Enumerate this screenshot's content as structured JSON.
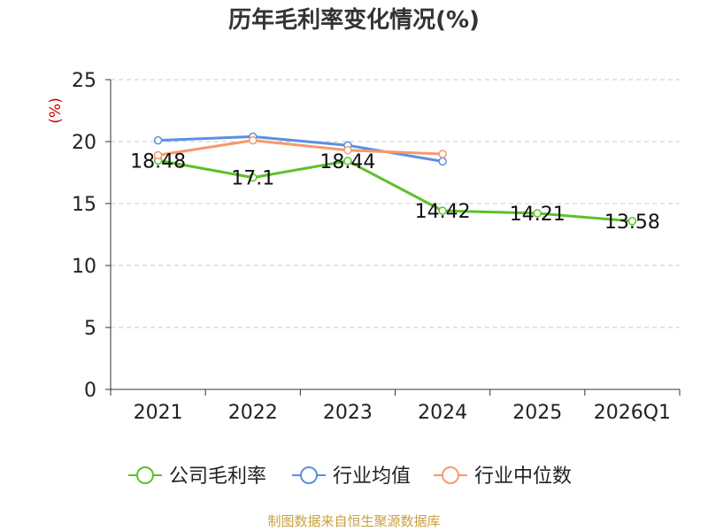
{
  "page": {
    "title": "历年毛利率变化情况(%)",
    "footer": "制图数据来自恒生聚源数据库"
  },
  "chart_data": {
    "type": "line",
    "title": "历年毛利率变化情况(%)",
    "ylabel": "(%)",
    "xlabel": "",
    "categories": [
      "2021",
      "2022",
      "2023",
      "2024",
      "2025",
      "2026Q1"
    ],
    "ylim": [
      0,
      25
    ],
    "yticks": [
      0,
      5,
      10,
      15,
      20,
      25
    ],
    "grid": true,
    "legend_position": "bottom",
    "series": [
      {
        "name": "公司毛利率",
        "color": "#5cc12a",
        "values": [
          18.48,
          17.1,
          18.44,
          14.42,
          14.21,
          13.58
        ],
        "labels": [
          "18.48",
          "17.1",
          "18.44",
          "14.42",
          "14.21",
          "13.58"
        ]
      },
      {
        "name": "行业均值",
        "color": "#5b8ee6",
        "values": [
          20.1,
          20.4,
          19.7,
          18.4,
          null,
          null
        ]
      },
      {
        "name": "行业中位数",
        "color": "#f59a6a",
        "values": [
          18.9,
          20.1,
          19.3,
          19.0,
          null,
          null
        ]
      }
    ]
  }
}
